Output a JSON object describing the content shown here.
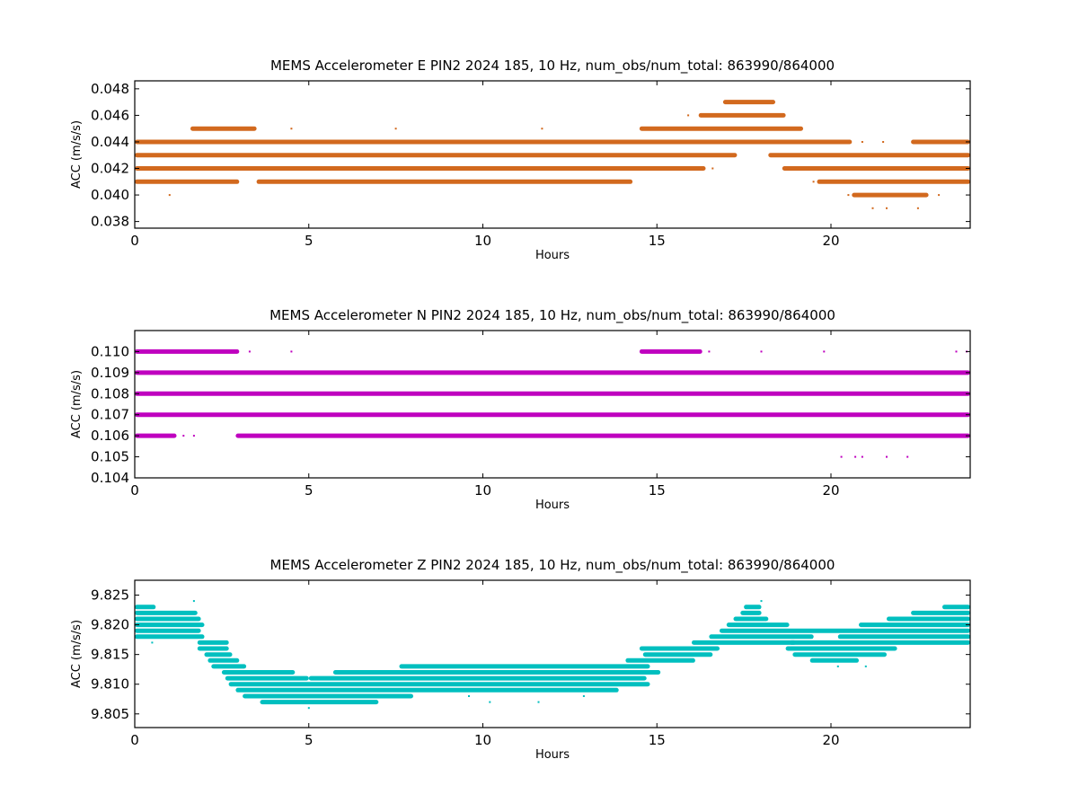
{
  "chart_data": [
    {
      "type": "scatter",
      "title": "MEMS Accelerometer E PIN2 2024 185, 10 Hz, num_obs/num_total: 863990/864000",
      "xlabel": "Hours",
      "ylabel": "ACC (m/s/s)",
      "color": "#d2691e",
      "xlim": [
        0,
        24
      ],
      "ylim": [
        0.0375,
        0.0486
      ],
      "xticks": [
        "0",
        "5",
        "10",
        "15",
        "20"
      ],
      "yticks": [
        "0.038",
        "0.040",
        "0.042",
        "0.044",
        "0.046",
        "0.048"
      ],
      "x_tick_values": [
        0,
        5,
        10,
        15,
        20
      ],
      "y_tick_values": [
        0.038,
        0.04,
        0.042,
        0.044,
        0.046,
        0.048
      ],
      "bands": [
        {
          "y": 0.047,
          "start": 16.9,
          "end": 18.4
        },
        {
          "y": 0.046,
          "start": 16.2,
          "end": 18.7
        },
        {
          "y": 0.045,
          "start": 1.6,
          "end": 3.5
        },
        {
          "y": 0.045,
          "start": 14.5,
          "end": 19.2
        },
        {
          "y": 0.044,
          "start": 0,
          "end": 20.6
        },
        {
          "y": 0.044,
          "start": 22.3,
          "end": 24
        },
        {
          "y": 0.043,
          "start": 0,
          "end": 17.3
        },
        {
          "y": 0.043,
          "start": 18.2,
          "end": 24
        },
        {
          "y": 0.042,
          "start": 0,
          "end": 16.4
        },
        {
          "y": 0.042,
          "start": 18.6,
          "end": 24
        },
        {
          "y": 0.041,
          "start": 0,
          "end": 3.0
        },
        {
          "y": 0.041,
          "start": 3.5,
          "end": 14.3
        },
        {
          "y": 0.041,
          "start": 19.6,
          "end": 24
        },
        {
          "y": 0.04,
          "start": 20.6,
          "end": 22.8
        }
      ],
      "points": [
        {
          "x": 1.0,
          "y": 0.04
        },
        {
          "x": 16.6,
          "y": 0.042
        },
        {
          "x": 15.9,
          "y": 0.046
        },
        {
          "x": 21.2,
          "y": 0.039
        },
        {
          "x": 21.6,
          "y": 0.039
        },
        {
          "x": 22.5,
          "y": 0.039
        },
        {
          "x": 4.5,
          "y": 0.045
        },
        {
          "x": 7.5,
          "y": 0.045
        },
        {
          "x": 11.7,
          "y": 0.045
        },
        {
          "x": 20.9,
          "y": 0.044
        },
        {
          "x": 21.5,
          "y": 0.044
        },
        {
          "x": 19.5,
          "y": 0.041
        },
        {
          "x": 23.1,
          "y": 0.04
        },
        {
          "x": 20.5,
          "y": 0.04
        }
      ]
    },
    {
      "type": "scatter",
      "title": "MEMS Accelerometer N PIN2 2024 185, 10 Hz, num_obs/num_total: 863990/864000",
      "xlabel": "Hours",
      "ylabel": "ACC (m/s/s)",
      "color": "#bf00bf",
      "xlim": [
        0,
        24
      ],
      "ylim": [
        0.104,
        0.111
      ],
      "xticks": [
        "0",
        "5",
        "10",
        "15",
        "20"
      ],
      "yticks": [
        "0.104",
        "0.105",
        "0.106",
        "0.107",
        "0.108",
        "0.109",
        "0.110"
      ],
      "x_tick_values": [
        0,
        5,
        10,
        15,
        20
      ],
      "y_tick_values": [
        0.104,
        0.105,
        0.106,
        0.107,
        0.108,
        0.109,
        0.11
      ],
      "bands": [
        {
          "y": 0.11,
          "start": 0,
          "end": 3.0
        },
        {
          "y": 0.11,
          "start": 14.5,
          "end": 16.3
        },
        {
          "y": 0.109,
          "start": 0,
          "end": 24
        },
        {
          "y": 0.108,
          "start": 0,
          "end": 24
        },
        {
          "y": 0.107,
          "start": 0,
          "end": 24
        },
        {
          "y": 0.106,
          "start": 0,
          "end": 1.2
        },
        {
          "y": 0.106,
          "start": 2.9,
          "end": 24
        }
      ],
      "points": [
        {
          "x": 3.3,
          "y": 0.11
        },
        {
          "x": 4.5,
          "y": 0.11
        },
        {
          "x": 16.5,
          "y": 0.11
        },
        {
          "x": 18.0,
          "y": 0.11
        },
        {
          "x": 19.8,
          "y": 0.11
        },
        {
          "x": 23.6,
          "y": 0.11
        },
        {
          "x": 23.9,
          "y": 0.11
        },
        {
          "x": 1.4,
          "y": 0.106
        },
        {
          "x": 1.7,
          "y": 0.106
        },
        {
          "x": 20.3,
          "y": 0.105
        },
        {
          "x": 20.7,
          "y": 0.105
        },
        {
          "x": 20.9,
          "y": 0.105
        },
        {
          "x": 21.6,
          "y": 0.105
        },
        {
          "x": 22.2,
          "y": 0.105
        }
      ]
    },
    {
      "type": "scatter",
      "title": "MEMS Accelerometer Z PIN2 2024 185, 10 Hz, num_obs/num_total: 863990/864000",
      "xlabel": "Hours",
      "ylabel": "ACC (m/s/s)",
      "color": "#00bfbf",
      "xlim": [
        0,
        24
      ],
      "ylim": [
        9.8027,
        9.8275
      ],
      "xticks": [
        "0",
        "5",
        "10",
        "15",
        "20"
      ],
      "yticks": [
        "9.805",
        "9.810",
        "9.815",
        "9.820",
        "9.825"
      ],
      "x_tick_values": [
        0,
        5,
        10,
        15,
        20
      ],
      "y_tick_values": [
        9.805,
        9.81,
        9.815,
        9.82,
        9.825
      ],
      "bands": [
        {
          "y": 9.823,
          "start": 0,
          "end": 0.6
        },
        {
          "y": 9.822,
          "start": 0,
          "end": 1.8
        },
        {
          "y": 9.821,
          "start": 0,
          "end": 1.9
        },
        {
          "y": 9.82,
          "start": 0,
          "end": 2.0
        },
        {
          "y": 9.819,
          "start": 0,
          "end": 1.9
        },
        {
          "y": 9.818,
          "start": 0,
          "end": 2.0
        },
        {
          "y": 9.817,
          "start": 1.8,
          "end": 2.7
        },
        {
          "y": 9.816,
          "start": 1.8,
          "end": 2.7
        },
        {
          "y": 9.815,
          "start": 2.0,
          "end": 2.8
        },
        {
          "y": 9.814,
          "start": 2.1,
          "end": 3.0
        },
        {
          "y": 9.813,
          "start": 2.2,
          "end": 3.2
        },
        {
          "y": 9.812,
          "start": 2.5,
          "end": 4.6
        },
        {
          "y": 9.812,
          "start": 5.7,
          "end": 15.1
        },
        {
          "y": 9.811,
          "start": 2.6,
          "end": 5.0
        },
        {
          "y": 9.811,
          "start": 5.0,
          "end": 14.7
        },
        {
          "y": 9.81,
          "start": 2.7,
          "end": 14.8
        },
        {
          "y": 9.809,
          "start": 2.9,
          "end": 13.9
        },
        {
          "y": 9.808,
          "start": 3.1,
          "end": 8.0
        },
        {
          "y": 9.807,
          "start": 3.6,
          "end": 7.0
        },
        {
          "y": 9.813,
          "start": 7.6,
          "end": 14.8
        },
        {
          "y": 9.814,
          "start": 14.1,
          "end": 16.1
        },
        {
          "y": 9.815,
          "start": 14.6,
          "end": 16.6
        },
        {
          "y": 9.816,
          "start": 14.5,
          "end": 16.8
        },
        {
          "y": 9.817,
          "start": 16.0,
          "end": 19.0
        },
        {
          "y": 9.818,
          "start": 16.5,
          "end": 19.5
        },
        {
          "y": 9.819,
          "start": 16.8,
          "end": 24
        },
        {
          "y": 9.82,
          "start": 17.0,
          "end": 18.8
        },
        {
          "y": 9.821,
          "start": 17.2,
          "end": 18.2
        },
        {
          "y": 9.822,
          "start": 17.4,
          "end": 18.0
        },
        {
          "y": 9.823,
          "start": 17.5,
          "end": 18.0
        },
        {
          "y": 9.817,
          "start": 18.8,
          "end": 24
        },
        {
          "y": 9.816,
          "start": 18.7,
          "end": 21.9
        },
        {
          "y": 9.815,
          "start": 18.9,
          "end": 21.6
        },
        {
          "y": 9.814,
          "start": 19.4,
          "end": 20.8
        },
        {
          "y": 9.818,
          "start": 20.2,
          "end": 24
        },
        {
          "y": 9.82,
          "start": 20.8,
          "end": 24
        },
        {
          "y": 9.821,
          "start": 21.6,
          "end": 24
        },
        {
          "y": 9.822,
          "start": 22.3,
          "end": 24
        },
        {
          "y": 9.823,
          "start": 23.2,
          "end": 24
        }
      ],
      "points": [
        {
          "x": 1.7,
          "y": 9.824
        },
        {
          "x": 0.5,
          "y": 9.817
        },
        {
          "x": 5.0,
          "y": 9.806
        },
        {
          "x": 10.2,
          "y": 9.807
        },
        {
          "x": 11.6,
          "y": 9.807
        },
        {
          "x": 20.2,
          "y": 9.813
        },
        {
          "x": 21.0,
          "y": 9.813
        },
        {
          "x": 9.6,
          "y": 9.808
        },
        {
          "x": 12.9,
          "y": 9.808
        },
        {
          "x": 18.0,
          "y": 9.824
        }
      ]
    }
  ]
}
